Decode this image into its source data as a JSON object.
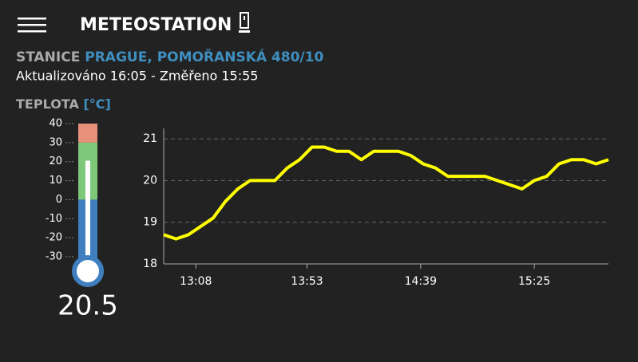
{
  "header": {
    "title": "METEOSTATION"
  },
  "station": {
    "label": "STANICE",
    "name": "PRAGUE, POMOŘANSKÁ 480/10"
  },
  "updated": "Aktualizováno 16:05 - Změřeno 15:55",
  "temperature": {
    "label": "TEPLOTA",
    "unit": "[°C]"
  },
  "thermometer": {
    "ticks": [
      40,
      30,
      20,
      10,
      0,
      -10,
      -20,
      -30
    ],
    "value": 20.5
  },
  "chart_data": {
    "type": "line",
    "x": [
      775,
      780,
      785,
      790,
      795,
      800,
      805,
      810,
      815,
      820,
      825,
      830,
      835,
      840,
      845,
      850,
      855,
      860,
      865,
      870,
      875,
      880,
      885,
      890,
      895,
      900,
      905,
      910,
      915,
      920,
      925,
      930,
      935,
      940,
      945,
      950,
      955
    ],
    "series": [
      {
        "name": null,
        "color": "#ffff00",
        "values": [
          18.7,
          18.6,
          18.7,
          18.9,
          19.1,
          19.5,
          19.8,
          20.0,
          20.0,
          20.0,
          20.3,
          20.5,
          20.8,
          20.8,
          20.7,
          20.7,
          20.5,
          20.7,
          20.7,
          20.7,
          20.6,
          20.4,
          20.3,
          20.1,
          20.1,
          20.1,
          20.1,
          20.0,
          19.9,
          19.8,
          20.0,
          20.1,
          20.4,
          20.5,
          20.5,
          20.4,
          20.5
        ]
      }
    ],
    "xlim": [
      775,
      955
    ],
    "xticks": [
      {
        "value": 788,
        "label": "13:08"
      },
      {
        "value": 833,
        "label": "13:53"
      },
      {
        "value": 879,
        "label": "14:39"
      },
      {
        "value": 925,
        "label": "15:25"
      }
    ],
    "ylim": [
      18,
      21.25
    ],
    "yticks": [
      18,
      19,
      20,
      21
    ],
    "grid": true
  }
}
